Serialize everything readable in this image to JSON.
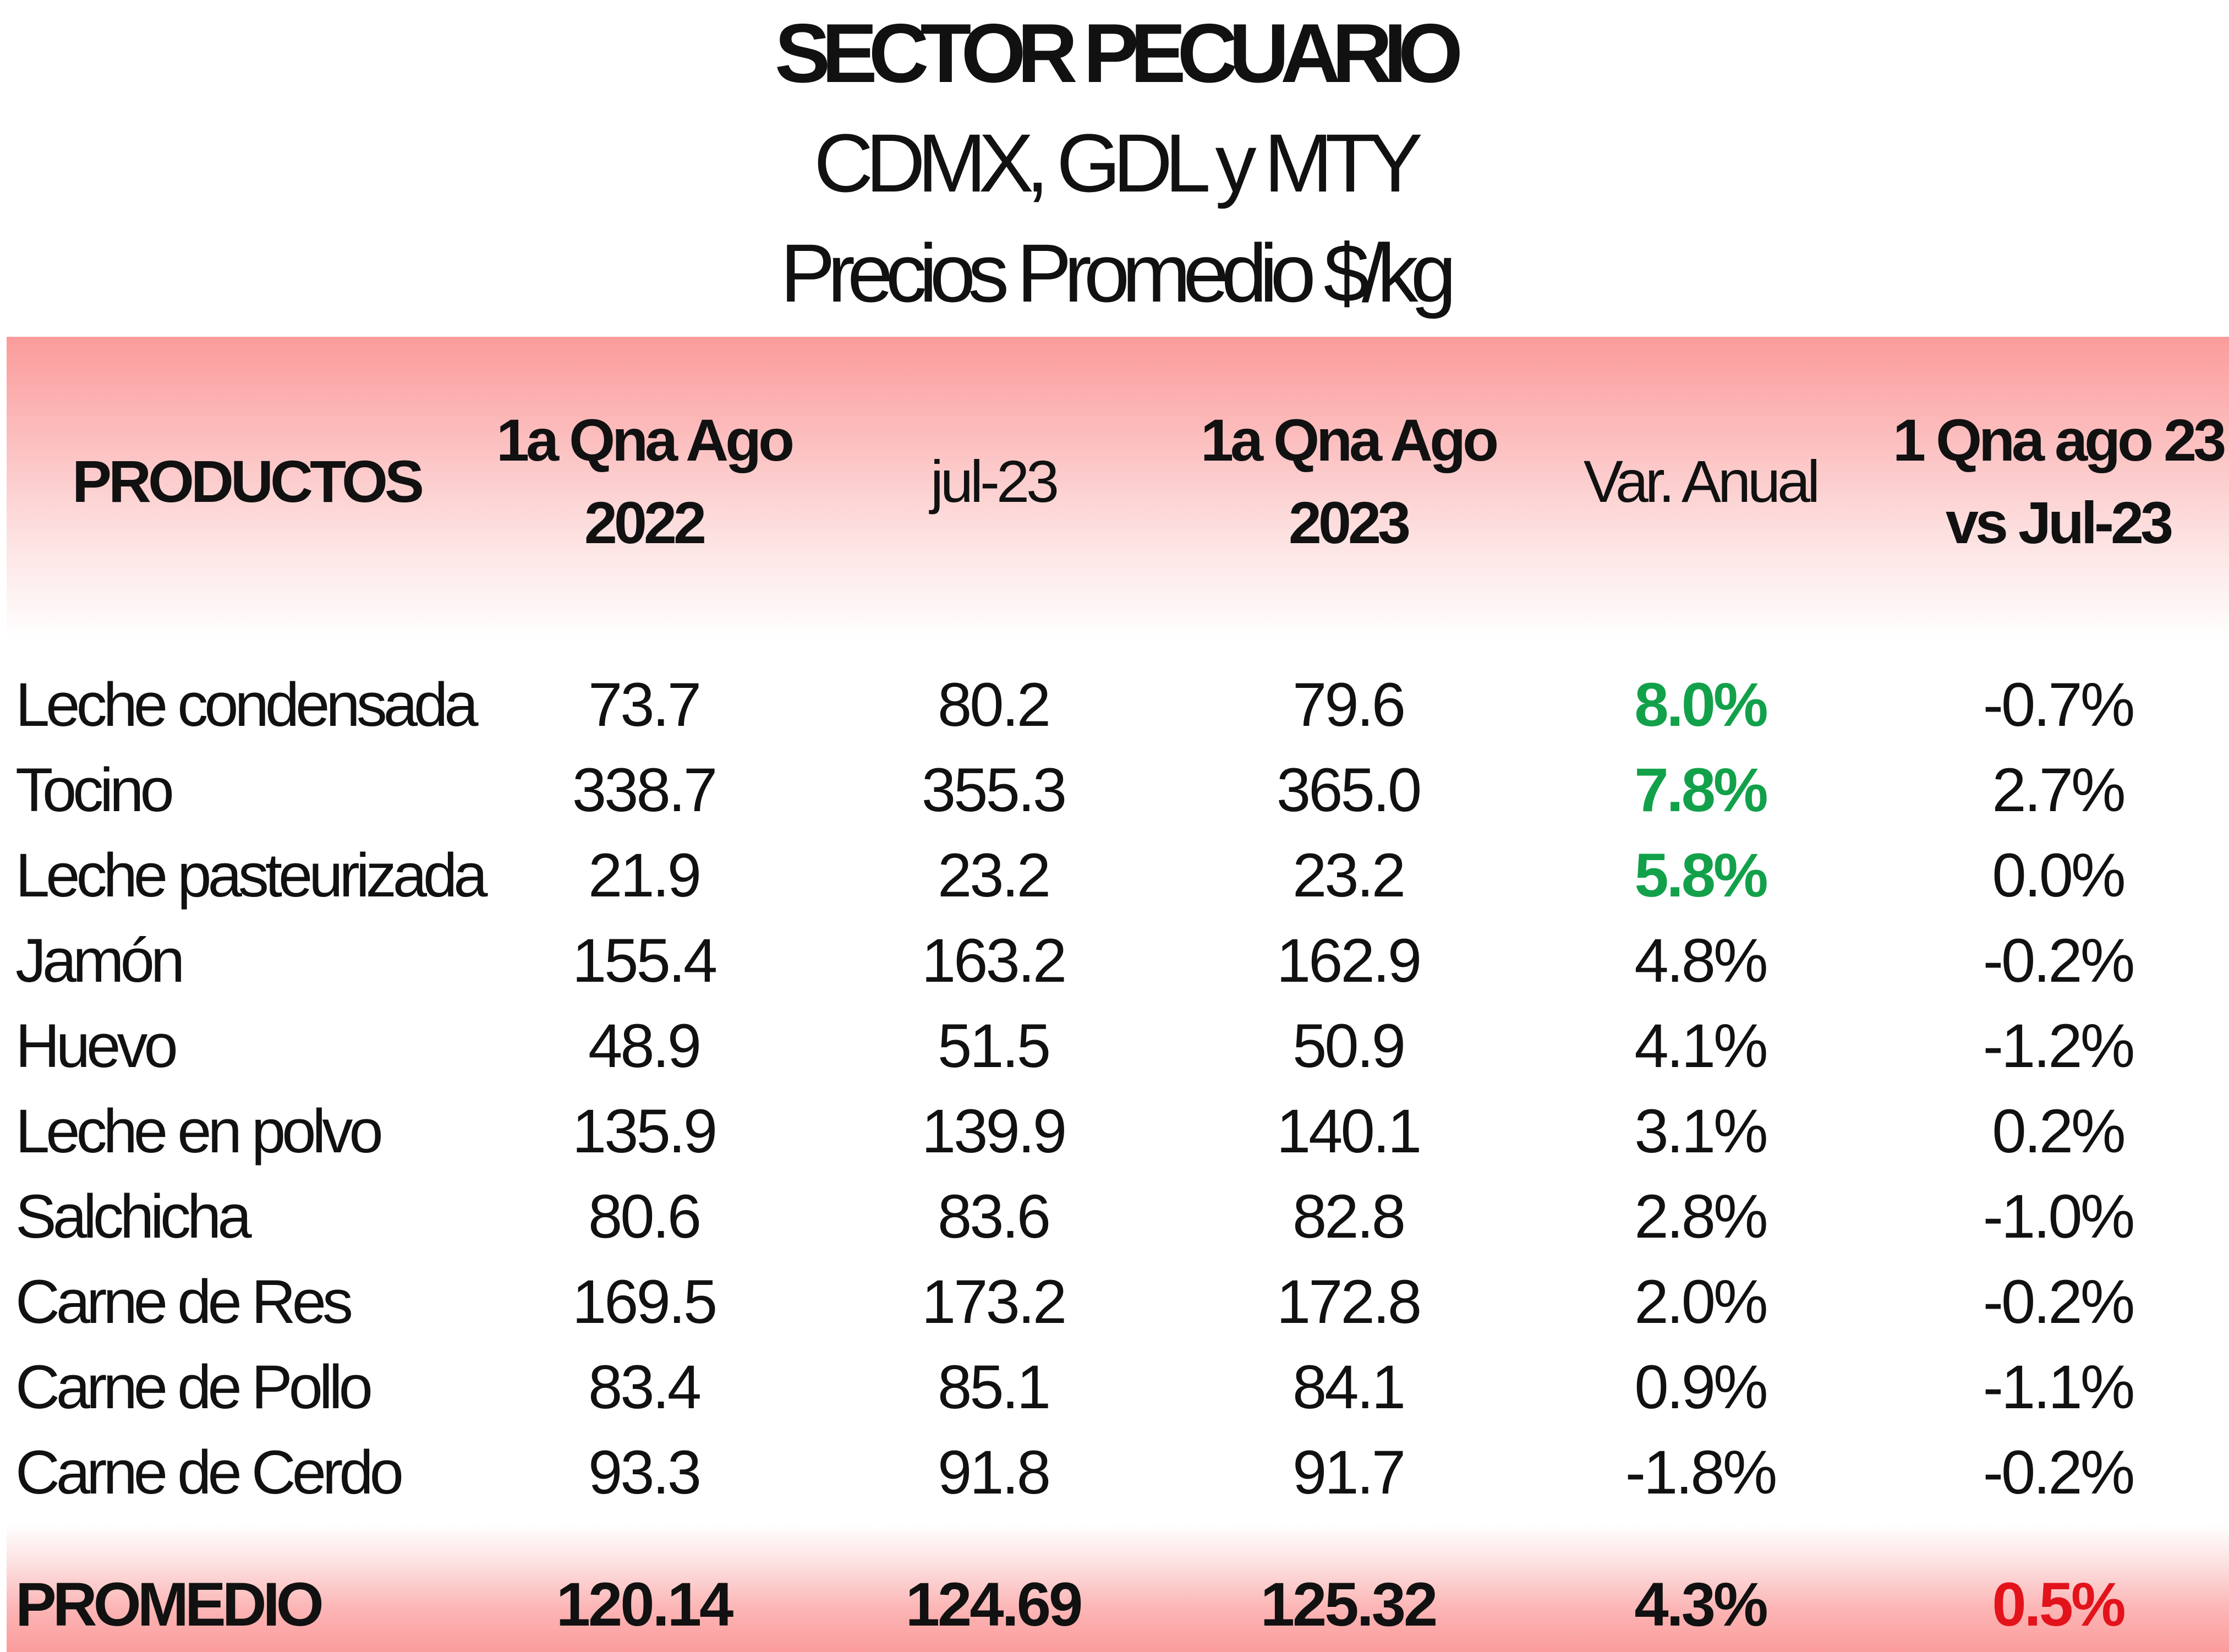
{
  "title": {
    "line1": "SECTOR PECUARIO",
    "line2": "CDMX, GDL y MTY",
    "line3": "Precios Promedio $/kg"
  },
  "columns": [
    {
      "line1": "PRODUCTOS",
      "line2": ""
    },
    {
      "line1": "1a Qna Ago",
      "line2": "2022"
    },
    {
      "line1": "jul-23",
      "line2": ""
    },
    {
      "line1": "1a Qna Ago",
      "line2": "2023"
    },
    {
      "line1": "Var. Anual",
      "line2": ""
    },
    {
      "line1": "1 Qna ago 23",
      "line2": "vs Jul-23"
    }
  ],
  "rows": [
    {
      "product": "Leche condensada",
      "qna_ago_2022": "73.7",
      "jul_23": "80.2",
      "qna_ago_2023": "79.6",
      "var_anual": "8.0%",
      "vs_jul": "-0.7%"
    },
    {
      "product": "Tocino",
      "qna_ago_2022": "338.7",
      "jul_23": "355.3",
      "qna_ago_2023": "365.0",
      "var_anual": "7.8%",
      "vs_jul": "2.7%"
    },
    {
      "product": "Leche pasteurizada",
      "qna_ago_2022": "21.9",
      "jul_23": "23.2",
      "qna_ago_2023": "23.2",
      "var_anual": "5.8%",
      "vs_jul": "0.0%"
    },
    {
      "product": "Jamón",
      "qna_ago_2022": "155.4",
      "jul_23": "163.2",
      "qna_ago_2023": "162.9",
      "var_anual": "4.8%",
      "vs_jul": "-0.2%"
    },
    {
      "product": "Huevo",
      "qna_ago_2022": "48.9",
      "jul_23": "51.5",
      "qna_ago_2023": "50.9",
      "var_anual": "4.1%",
      "vs_jul": "-1.2%"
    },
    {
      "product": "Leche en polvo",
      "qna_ago_2022": "135.9",
      "jul_23": "139.9",
      "qna_ago_2023": "140.1",
      "var_anual": "3.1%",
      "vs_jul": "0.2%"
    },
    {
      "product": "Salchicha",
      "qna_ago_2022": "80.6",
      "jul_23": "83.6",
      "qna_ago_2023": "82.8",
      "var_anual": "2.8%",
      "vs_jul": "-1.0%"
    },
    {
      "product": "Carne de Res",
      "qna_ago_2022": "169.5",
      "jul_23": "173.2",
      "qna_ago_2023": "172.8",
      "var_anual": "2.0%",
      "vs_jul": "-0.2%"
    },
    {
      "product": "Carne de Pollo",
      "qna_ago_2022": "83.4",
      "jul_23": "85.1",
      "qna_ago_2023": "84.1",
      "var_anual": "0.9%",
      "vs_jul": "-1.1%"
    },
    {
      "product": "Carne de Cerdo",
      "qna_ago_2022": "93.3",
      "jul_23": "91.8",
      "qna_ago_2023": "91.7",
      "var_anual": "-1.8%",
      "vs_jul": "-0.2%"
    }
  ],
  "footer": {
    "label": "PROMEDIO",
    "qna_ago_2022": "120.14",
    "jul_23": "124.69",
    "qna_ago_2023": "125.32",
    "var_anual": "4.3%",
    "vs_jul": "0.5%"
  },
  "colors": {
    "highlight_positive": "#12a14a",
    "highlight_negative": "#e3131b",
    "band": "#fb9b9b"
  }
}
